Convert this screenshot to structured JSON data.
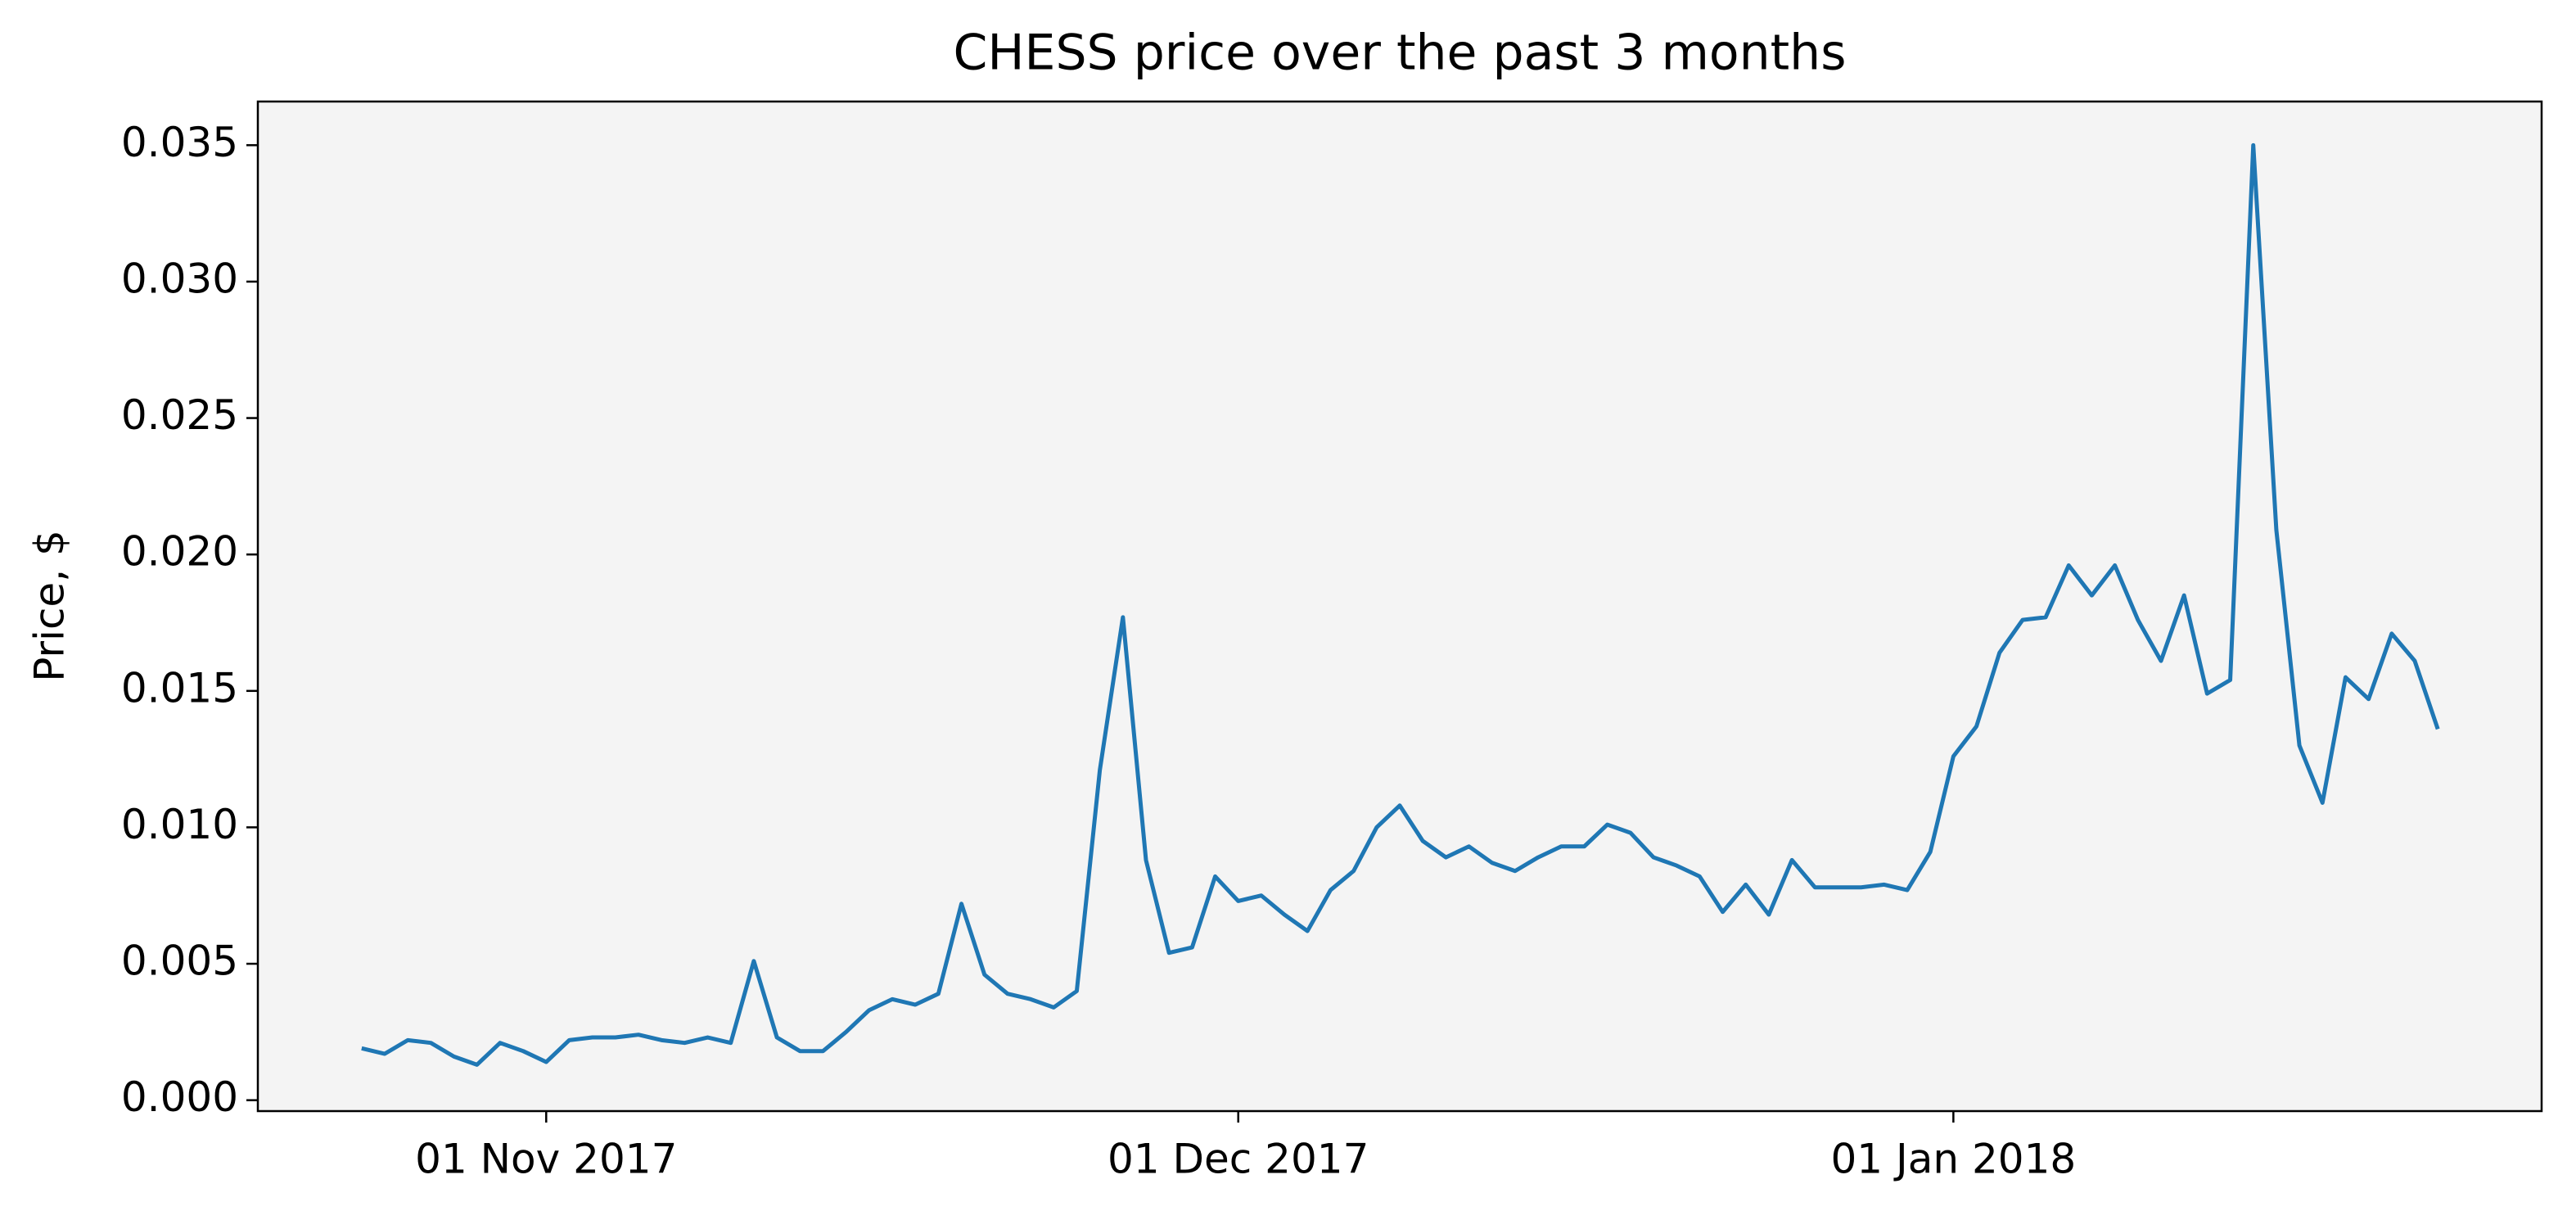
{
  "chart_data": {
    "type": "line",
    "title": "CHESS price over the past 3 months",
    "ylabel": "Price, $",
    "x": [
      "2017-10-24",
      "2017-10-25",
      "2017-10-26",
      "2017-10-27",
      "2017-10-28",
      "2017-10-29",
      "2017-10-30",
      "2017-10-31",
      "2017-11-01",
      "2017-11-02",
      "2017-11-03",
      "2017-11-04",
      "2017-11-05",
      "2017-11-06",
      "2017-11-07",
      "2017-11-08",
      "2017-11-09",
      "2017-11-10",
      "2017-11-11",
      "2017-11-12",
      "2017-11-13",
      "2017-11-14",
      "2017-11-15",
      "2017-11-16",
      "2017-11-17",
      "2017-11-18",
      "2017-11-19",
      "2017-11-20",
      "2017-11-21",
      "2017-11-22",
      "2017-11-23",
      "2017-11-24",
      "2017-11-25",
      "2017-11-26",
      "2017-11-27",
      "2017-11-28",
      "2017-11-29",
      "2017-11-30",
      "2017-12-01",
      "2017-12-02",
      "2017-12-03",
      "2017-12-04",
      "2017-12-05",
      "2017-12-06",
      "2017-12-07",
      "2017-12-08",
      "2017-12-09",
      "2017-12-10",
      "2017-12-11",
      "2017-12-12",
      "2017-12-13",
      "2017-12-14",
      "2017-12-15",
      "2017-12-16",
      "2017-12-17",
      "2017-12-18",
      "2017-12-19",
      "2017-12-20",
      "2017-12-21",
      "2017-12-22",
      "2017-12-23",
      "2017-12-24",
      "2017-12-25",
      "2017-12-26",
      "2017-12-27",
      "2017-12-28",
      "2017-12-29",
      "2017-12-30",
      "2017-12-31",
      "2018-01-01",
      "2018-01-02",
      "2018-01-03",
      "2018-01-04",
      "2018-01-05",
      "2018-01-06",
      "2018-01-07",
      "2018-01-08",
      "2018-01-09",
      "2018-01-10",
      "2018-01-11",
      "2018-01-12",
      "2018-01-13",
      "2018-01-14",
      "2018-01-15",
      "2018-01-16",
      "2018-01-17",
      "2018-01-18",
      "2018-01-19",
      "2018-01-20",
      "2018-01-21",
      "2018-01-22"
    ],
    "values": [
      0.0019,
      0.0017,
      0.0022,
      0.0021,
      0.0016,
      0.0013,
      0.0021,
      0.0018,
      0.0014,
      0.0022,
      0.0023,
      0.0023,
      0.0024,
      0.0022,
      0.0021,
      0.0023,
      0.0021,
      0.0051,
      0.0023,
      0.0018,
      0.0018,
      0.0025,
      0.0033,
      0.0037,
      0.0035,
      0.0039,
      0.0072,
      0.0046,
      0.0039,
      0.0037,
      0.0034,
      0.004,
      0.0121,
      0.0177,
      0.0088,
      0.0054,
      0.0056,
      0.0082,
      0.0073,
      0.0075,
      0.0068,
      0.0062,
      0.0077,
      0.0084,
      0.01,
      0.0108,
      0.0095,
      0.0089,
      0.0093,
      0.0087,
      0.0084,
      0.0089,
      0.0093,
      0.0093,
      0.0101,
      0.0098,
      0.0089,
      0.0086,
      0.0082,
      0.0069,
      0.0079,
      0.0068,
      0.0088,
      0.0078,
      0.0078,
      0.0078,
      0.0079,
      0.0077,
      0.0091,
      0.0126,
      0.0137,
      0.0164,
      0.0176,
      0.0177,
      0.0196,
      0.0185,
      0.0196,
      0.0176,
      0.0161,
      0.0185,
      0.0149,
      0.0154,
      0.035,
      0.0209,
      0.013,
      0.0109,
      0.0155,
      0.0147,
      0.0171,
      0.0161,
      0.0136
    ],
    "color": "#1f77b4",
    "xlim": [
      "2017-10-19T12:00",
      "2018-01-26T12:00"
    ],
    "xticks": [
      {
        "value": "2017-11-01",
        "label": "01 Nov 2017"
      },
      {
        "value": "2017-12-01",
        "label": "01 Dec 2017"
      },
      {
        "value": "2018-01-01",
        "label": "01 Jan 2018"
      }
    ],
    "ylim": [
      -0.0004,
      0.0366
    ],
    "yticks": [
      {
        "value": 0,
        "label": "0.000"
      },
      {
        "value": 0.005,
        "label": "0.005"
      },
      {
        "value": 0.01,
        "label": "0.010"
      },
      {
        "value": 0.015,
        "label": "0.015"
      },
      {
        "value": 0.02,
        "label": "0.020"
      },
      {
        "value": 0.025,
        "label": "0.025"
      },
      {
        "value": 0.03,
        "label": "0.030"
      },
      {
        "value": 0.035,
        "label": "0.035"
      }
    ],
    "plot_background": "#f4f4f4"
  }
}
